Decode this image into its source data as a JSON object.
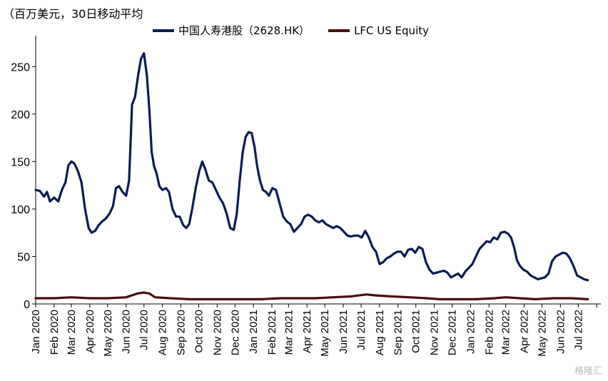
{
  "unit_label": "（百万美元，30日移动平均",
  "watermark": "格隆汇",
  "chart_data": {
    "type": "line",
    "title": "",
    "xlabel": "",
    "ylabel": "",
    "ylim": [
      0,
      275
    ],
    "y_ticks": [
      0,
      50,
      100,
      150,
      200,
      250
    ],
    "x_range": [
      "2020-01-01",
      "2022-08-08"
    ],
    "x_tick_labels": [
      "Jan 2020",
      "Feb 2020",
      "Mar 2020",
      "Apr 2020",
      "May 2020",
      "Jun 2020",
      "Jul 2020",
      "Aug 2020",
      "Sep 2020",
      "Oct 2020",
      "Nov 2020",
      "Dec 2020",
      "Jan 2021",
      "Feb 2021",
      "Mar 2021",
      "Apr 2021",
      "May 2021",
      "Jun 2021",
      "Jul 2021",
      "Aug 2021",
      "Sep 2021",
      "Oct 2021",
      "Nov 2021",
      "Dec 2021",
      "Jan 2022",
      "Feb 2022",
      "Mar 2022",
      "Apr 2022",
      "May 2022",
      "Jun 2022",
      "Jul 2022"
    ],
    "legend_position": "top",
    "grid": false,
    "series": [
      {
        "name": "中国人寿港股（2628.HK）",
        "color": "#0d1b54",
        "points": [
          [
            "2020-01-01",
            120
          ],
          [
            "2020-01-08",
            119
          ],
          [
            "2020-01-15",
            113
          ],
          [
            "2020-01-20",
            118
          ],
          [
            "2020-01-25",
            108
          ],
          [
            "2020-02-01",
            112
          ],
          [
            "2020-02-08",
            108
          ],
          [
            "2020-02-14",
            120
          ],
          [
            "2020-02-20",
            128
          ],
          [
            "2020-02-25",
            146
          ],
          [
            "2020-03-01",
            150
          ],
          [
            "2020-03-06",
            148
          ],
          [
            "2020-03-12",
            140
          ],
          [
            "2020-03-18",
            128
          ],
          [
            "2020-03-24",
            100
          ],
          [
            "2020-03-30",
            80
          ],
          [
            "2020-04-04",
            75
          ],
          [
            "2020-04-10",
            77
          ],
          [
            "2020-04-16",
            83
          ],
          [
            "2020-04-22",
            87
          ],
          [
            "2020-04-28",
            90
          ],
          [
            "2020-05-04",
            95
          ],
          [
            "2020-05-10",
            103
          ],
          [
            "2020-05-15",
            122
          ],
          [
            "2020-05-20",
            124
          ],
          [
            "2020-05-26",
            118
          ],
          [
            "2020-06-01",
            114
          ],
          [
            "2020-06-06",
            130
          ],
          [
            "2020-06-11",
            210
          ],
          [
            "2020-06-16",
            218
          ],
          [
            "2020-06-21",
            240
          ],
          [
            "2020-06-26",
            258
          ],
          [
            "2020-07-01",
            264
          ],
          [
            "2020-07-06",
            240
          ],
          [
            "2020-07-10",
            205
          ],
          [
            "2020-07-14",
            160
          ],
          [
            "2020-07-18",
            145
          ],
          [
            "2020-07-22",
            138
          ],
          [
            "2020-07-27",
            124
          ],
          [
            "2020-08-01",
            120
          ],
          [
            "2020-08-07",
            122
          ],
          [
            "2020-08-12",
            118
          ],
          [
            "2020-08-18",
            100
          ],
          [
            "2020-08-24",
            92
          ],
          [
            "2020-08-30",
            92
          ],
          [
            "2020-09-05",
            83
          ],
          [
            "2020-09-10",
            80
          ],
          [
            "2020-09-15",
            84
          ],
          [
            "2020-09-20",
            100
          ],
          [
            "2020-09-26",
            122
          ],
          [
            "2020-10-02",
            140
          ],
          [
            "2020-10-07",
            150
          ],
          [
            "2020-10-12",
            142
          ],
          [
            "2020-10-18",
            130
          ],
          [
            "2020-10-24",
            128
          ],
          [
            "2020-10-30",
            120
          ],
          [
            "2020-11-05",
            112
          ],
          [
            "2020-11-11",
            106
          ],
          [
            "2020-11-17",
            95
          ],
          [
            "2020-11-23",
            80
          ],
          [
            "2020-11-29",
            78
          ],
          [
            "2020-12-04",
            95
          ],
          [
            "2020-12-09",
            130
          ],
          [
            "2020-12-14",
            160
          ],
          [
            "2020-12-19",
            176
          ],
          [
            "2020-12-24",
            181
          ],
          [
            "2020-12-29",
            180
          ],
          [
            "2021-01-03",
            165
          ],
          [
            "2021-01-07",
            146
          ],
          [
            "2021-01-12",
            130
          ],
          [
            "2021-01-17",
            120
          ],
          [
            "2021-01-22",
            118
          ],
          [
            "2021-01-27",
            114
          ],
          [
            "2021-02-02",
            122
          ],
          [
            "2021-02-08",
            120
          ],
          [
            "2021-02-14",
            106
          ],
          [
            "2021-02-20",
            92
          ],
          [
            "2021-02-26",
            87
          ],
          [
            "2021-03-04",
            84
          ],
          [
            "2021-03-10",
            76
          ],
          [
            "2021-03-16",
            80
          ],
          [
            "2021-03-22",
            84
          ],
          [
            "2021-03-28",
            92
          ],
          [
            "2021-04-03",
            94
          ],
          [
            "2021-04-09",
            92
          ],
          [
            "2021-04-15",
            88
          ],
          [
            "2021-04-21",
            86
          ],
          [
            "2021-04-27",
            88
          ],
          [
            "2021-05-03",
            84
          ],
          [
            "2021-05-09",
            82
          ],
          [
            "2021-05-15",
            80
          ],
          [
            "2021-05-21",
            82
          ],
          [
            "2021-05-27",
            80
          ],
          [
            "2021-06-02",
            76
          ],
          [
            "2021-06-08",
            72
          ],
          [
            "2021-06-14",
            71
          ],
          [
            "2021-06-20",
            72
          ],
          [
            "2021-06-26",
            72
          ],
          [
            "2021-07-02",
            70
          ],
          [
            "2021-07-08",
            77
          ],
          [
            "2021-07-14",
            70
          ],
          [
            "2021-07-20",
            60
          ],
          [
            "2021-07-26",
            55
          ],
          [
            "2021-08-01",
            42
          ],
          [
            "2021-08-07",
            44
          ],
          [
            "2021-08-13",
            48
          ],
          [
            "2021-08-19",
            50
          ],
          [
            "2021-08-25",
            53
          ],
          [
            "2021-08-31",
            55
          ],
          [
            "2021-09-06",
            55
          ],
          [
            "2021-09-12",
            50
          ],
          [
            "2021-09-18",
            57
          ],
          [
            "2021-09-24",
            58
          ],
          [
            "2021-09-30",
            54
          ],
          [
            "2021-10-06",
            60
          ],
          [
            "2021-10-12",
            58
          ],
          [
            "2021-10-18",
            44
          ],
          [
            "2021-10-24",
            36
          ],
          [
            "2021-10-30",
            32
          ],
          [
            "2021-11-05",
            33
          ],
          [
            "2021-11-11",
            34
          ],
          [
            "2021-11-17",
            35
          ],
          [
            "2021-11-23",
            33
          ],
          [
            "2021-11-29",
            28
          ],
          [
            "2021-12-05",
            30
          ],
          [
            "2021-12-11",
            32
          ],
          [
            "2021-12-17",
            28
          ],
          [
            "2021-12-23",
            34
          ],
          [
            "2021-12-29",
            38
          ],
          [
            "2022-01-04",
            42
          ],
          [
            "2022-01-10",
            50
          ],
          [
            "2022-01-16",
            58
          ],
          [
            "2022-01-22",
            62
          ],
          [
            "2022-01-28",
            66
          ],
          [
            "2022-02-03",
            65
          ],
          [
            "2022-02-09",
            70
          ],
          [
            "2022-02-15",
            68
          ],
          [
            "2022-02-21",
            75
          ],
          [
            "2022-02-27",
            76
          ],
          [
            "2022-03-05",
            74
          ],
          [
            "2022-03-10",
            70
          ],
          [
            "2022-03-15",
            60
          ],
          [
            "2022-03-20",
            46
          ],
          [
            "2022-03-25",
            40
          ],
          [
            "2022-03-31",
            36
          ],
          [
            "2022-04-06",
            34
          ],
          [
            "2022-04-12",
            30
          ],
          [
            "2022-04-18",
            28
          ],
          [
            "2022-04-24",
            26
          ],
          [
            "2022-04-30",
            27
          ],
          [
            "2022-05-06",
            28
          ],
          [
            "2022-05-12",
            32
          ],
          [
            "2022-05-18",
            45
          ],
          [
            "2022-05-24",
            50
          ],
          [
            "2022-05-30",
            52
          ],
          [
            "2022-06-05",
            54
          ],
          [
            "2022-06-11",
            53
          ],
          [
            "2022-06-17",
            48
          ],
          [
            "2022-06-23",
            40
          ],
          [
            "2022-06-29",
            30
          ],
          [
            "2022-07-05",
            28
          ],
          [
            "2022-07-11",
            26
          ],
          [
            "2022-07-17",
            25
          ]
        ]
      },
      {
        "name": "LFC US Equity",
        "color": "#4a0d0d",
        "points": [
          [
            "2020-01-01",
            6
          ],
          [
            "2020-02-01",
            6
          ],
          [
            "2020-03-01",
            7
          ],
          [
            "2020-04-01",
            6
          ],
          [
            "2020-05-01",
            6
          ],
          [
            "2020-06-01",
            7
          ],
          [
            "2020-06-20",
            11
          ],
          [
            "2020-07-01",
            12
          ],
          [
            "2020-07-10",
            11
          ],
          [
            "2020-07-20",
            7
          ],
          [
            "2020-08-15",
            6
          ],
          [
            "2020-09-15",
            5
          ],
          [
            "2020-10-15",
            5
          ],
          [
            "2020-11-15",
            5
          ],
          [
            "2020-12-15",
            5
          ],
          [
            "2021-01-15",
            5
          ],
          [
            "2021-02-15",
            6
          ],
          [
            "2021-03-15",
            6
          ],
          [
            "2021-04-15",
            6
          ],
          [
            "2021-05-15",
            7
          ],
          [
            "2021-06-15",
            8
          ],
          [
            "2021-07-10",
            10
          ],
          [
            "2021-07-25",
            9
          ],
          [
            "2021-08-20",
            8
          ],
          [
            "2021-09-20",
            7
          ],
          [
            "2021-10-20",
            6
          ],
          [
            "2021-11-10",
            5
          ],
          [
            "2021-12-10",
            5
          ],
          [
            "2022-01-10",
            5
          ],
          [
            "2022-02-10",
            6
          ],
          [
            "2022-03-01",
            7
          ],
          [
            "2022-03-25",
            6
          ],
          [
            "2022-04-20",
            5
          ],
          [
            "2022-05-20",
            6
          ],
          [
            "2022-06-20",
            6
          ],
          [
            "2022-07-17",
            5
          ]
        ]
      }
    ]
  }
}
